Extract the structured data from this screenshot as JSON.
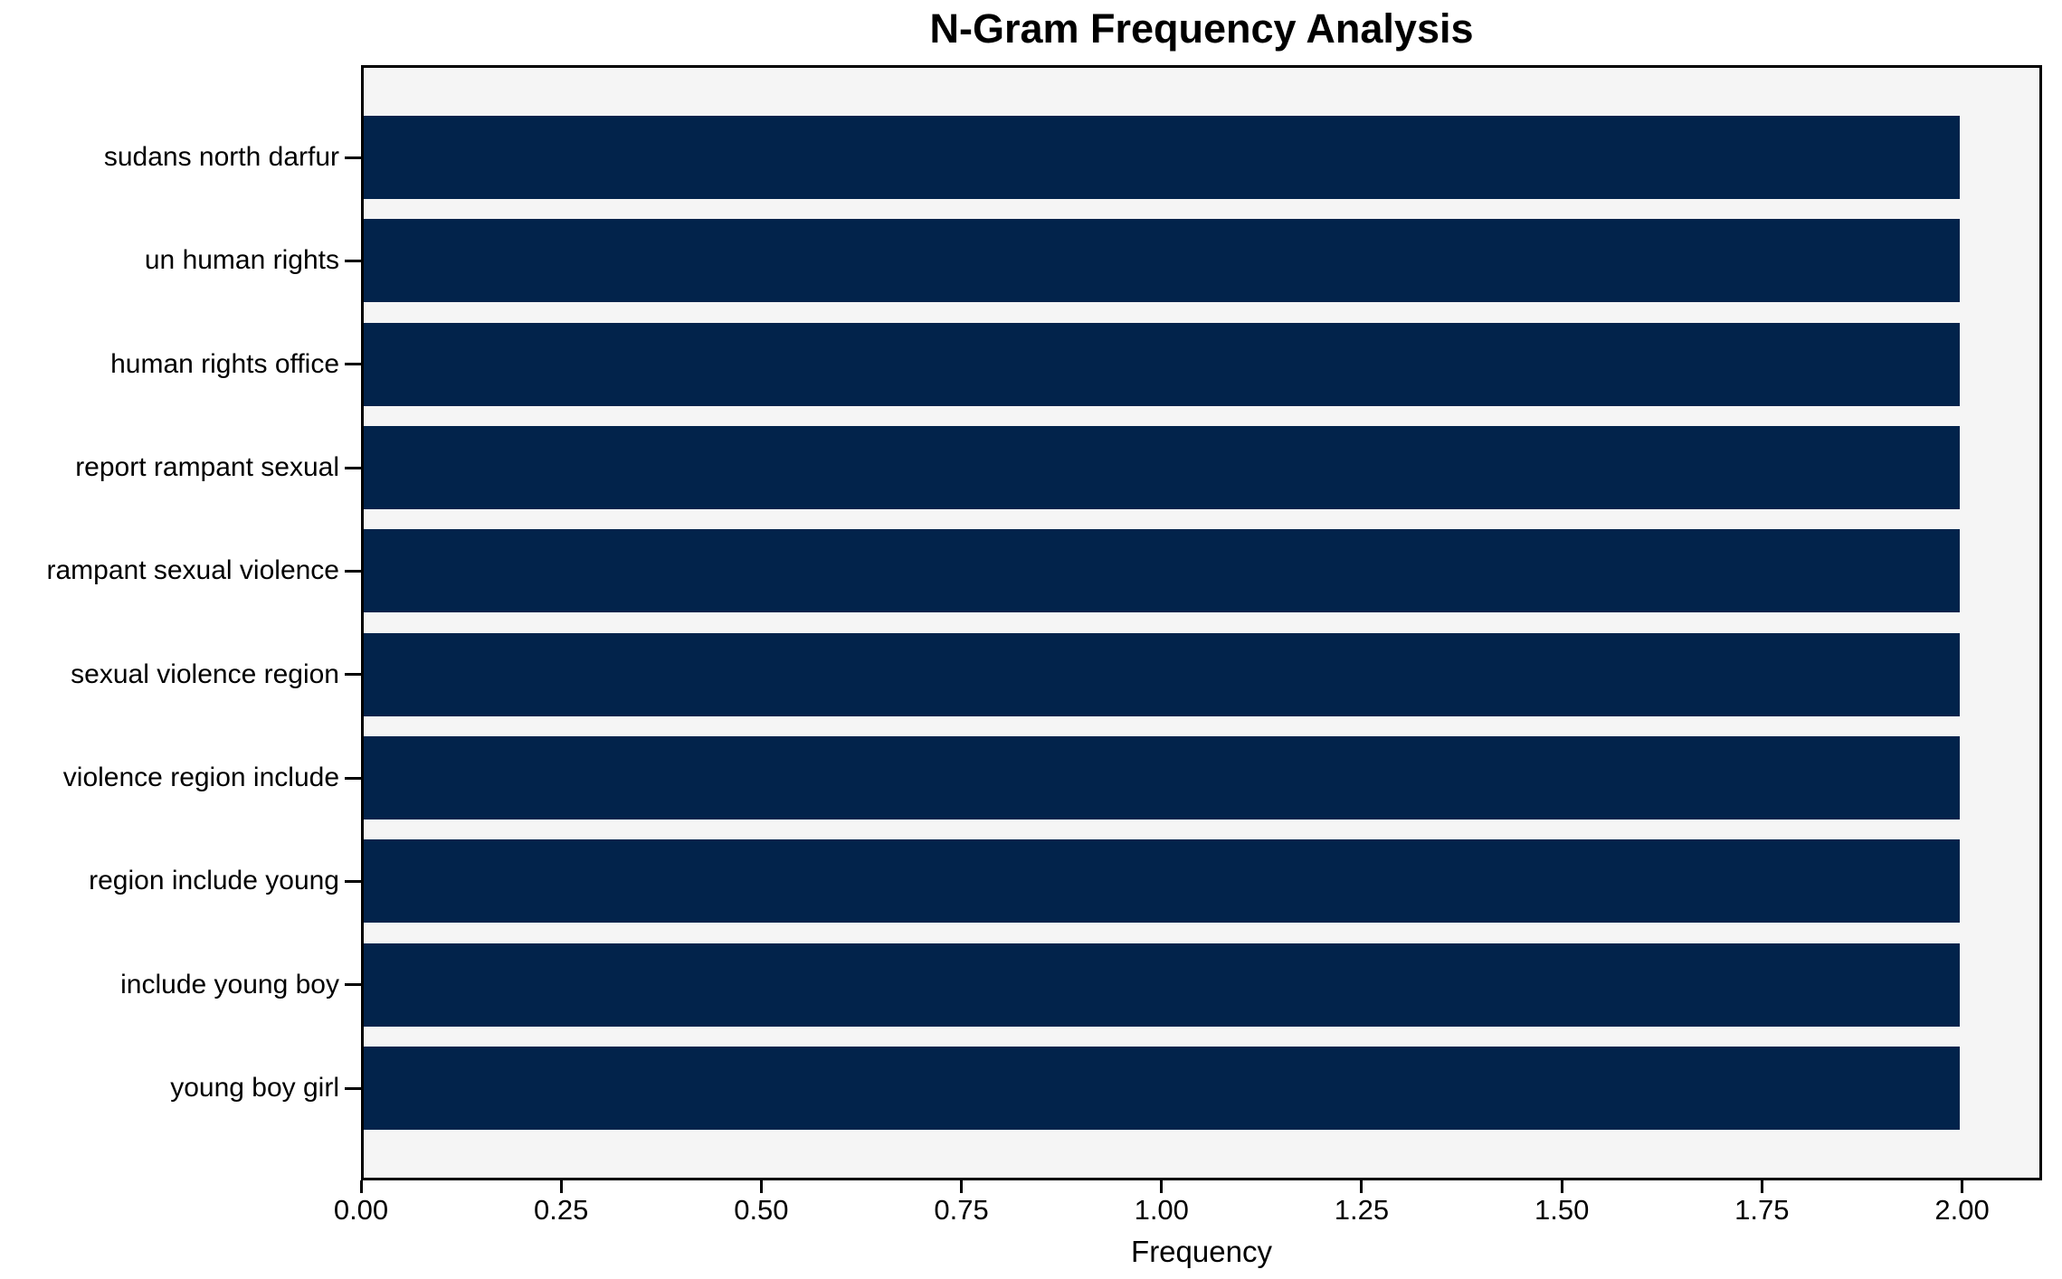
{
  "figure": {
    "title": "N-Gram Frequency Analysis",
    "xlabel": "Frequency"
  },
  "chart_data": {
    "type": "bar",
    "orientation": "horizontal",
    "title": "N-Gram Frequency Analysis",
    "xlabel": "Frequency",
    "ylabel": "",
    "categories": [
      "sudans north darfur",
      "un human rights",
      "human rights office",
      "report rampant sexual",
      "rampant sexual violence",
      "sexual violence region",
      "violence region include",
      "region include young",
      "include young boy",
      "young boy girl"
    ],
    "values": [
      2,
      2,
      2,
      2,
      2,
      2,
      2,
      2,
      2,
      2
    ],
    "xlim": [
      0,
      2.1
    ],
    "xtick_values": [
      0,
      0.25,
      0.5,
      0.75,
      1.0,
      1.25,
      1.5,
      1.75,
      2.0
    ],
    "xtick_labels": [
      "0.00",
      "0.25",
      "0.50",
      "0.75",
      "1.00",
      "1.25",
      "1.50",
      "1.75",
      "2.00"
    ],
    "grid": false,
    "legend_position": "none",
    "colors": {
      "bar": "#02234b",
      "plot_background": "#f5f5f5",
      "figure_background": "#ffffff",
      "spine": "#000000",
      "text": "#000000"
    }
  }
}
